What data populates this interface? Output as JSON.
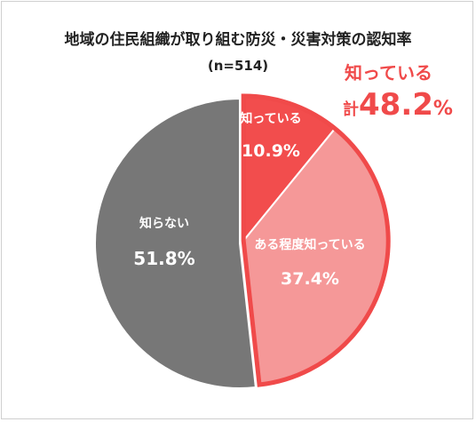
{
  "title": "地域の住民組織が取り組む防災・災害対策の認知率",
  "subtitle": "(n=514)",
  "callout": {
    "label": "知っている",
    "prefix": "計",
    "value": "48.2",
    "unit": "%"
  },
  "colors": {
    "know": "#f24d4d",
    "somewhat_know": "#f59898",
    "dont_know": "#777777",
    "accent": "#f04a4a"
  },
  "chart_data": {
    "type": "pie",
    "title": "地域の住民組織が取り組む防災・災害対策の認知率",
    "subtitle": "(n=514)",
    "slices": [
      {
        "label": "知っている",
        "value": 10.9,
        "value_label": "10.9%",
        "color": "#f24d4d"
      },
      {
        "label": "ある程度知っている",
        "value": 37.4,
        "value_label": "37.4%",
        "color": "#f59898"
      },
      {
        "label": "知らない",
        "value": 51.8,
        "value_label": "51.8%",
        "color": "#777777"
      }
    ],
    "annotation": "知っている 計48.2%",
    "start_angle": "12 o'clock",
    "direction": "clockwise"
  }
}
